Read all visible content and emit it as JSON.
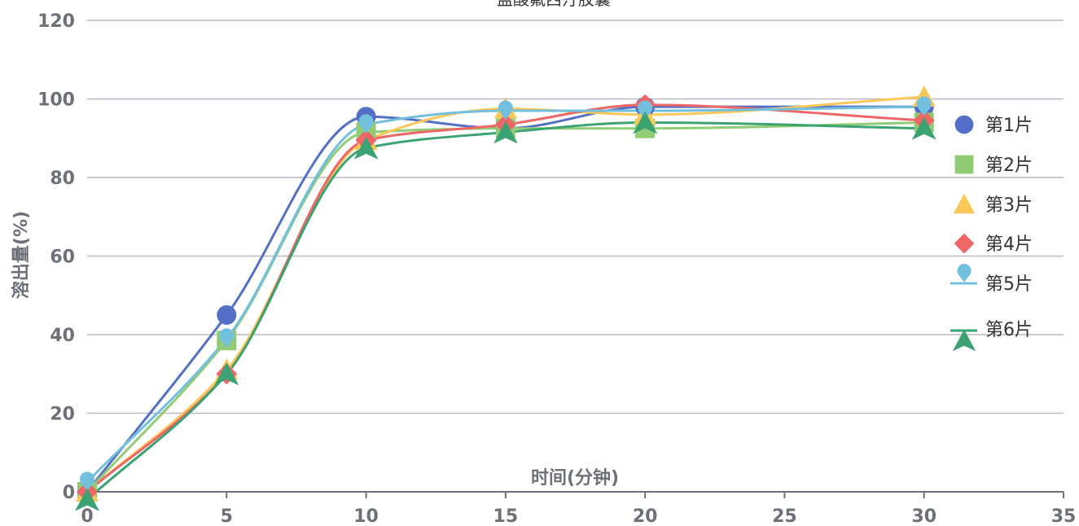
{
  "chart_data": {
    "type": "line",
    "title": "盐酸氟西汀胶囊",
    "xlabel": "时间(分钟)",
    "ylabel": "溶出量(%)",
    "xlim": [
      0,
      35
    ],
    "ylim": [
      0,
      120
    ],
    "x_ticks": [
      "0",
      "5",
      "10",
      "15",
      "20",
      "25",
      "30",
      "35"
    ],
    "y_ticks": [
      "0",
      "20",
      "40",
      "60",
      "80",
      "100",
      "120"
    ],
    "grid": true,
    "legend_position": "right",
    "x": [
      0,
      5,
      10,
      15,
      20,
      30
    ],
    "series": [
      {
        "name": "第1片",
        "marker": "circle",
        "color": "#5470c6",
        "values": [
          0,
          45,
          95.5,
          92.5,
          98,
          98
        ]
      },
      {
        "name": "第2片",
        "marker": "square",
        "color": "#91cc75",
        "values": [
          0,
          38.5,
          91.5,
          92.5,
          92.5,
          94
        ]
      },
      {
        "name": "第3片",
        "marker": "triangle",
        "color": "#fac858",
        "values": [
          0,
          31,
          89.5,
          97.5,
          96,
          100.5
        ]
      },
      {
        "name": "第4片",
        "marker": "diamond",
        "color": "#ee6666",
        "values": [
          0,
          30,
          89.5,
          93.5,
          98.5,
          94.5
        ]
      },
      {
        "name": "第5片",
        "marker": "pin",
        "color": "#73c0de",
        "values": [
          2.5,
          39,
          93.5,
          97,
          97,
          98
        ]
      },
      {
        "name": "第6片",
        "marker": "arrow",
        "color": "#3ba272",
        "values": [
          -2,
          30,
          87.5,
          91.5,
          94,
          92.5
        ]
      }
    ]
  }
}
